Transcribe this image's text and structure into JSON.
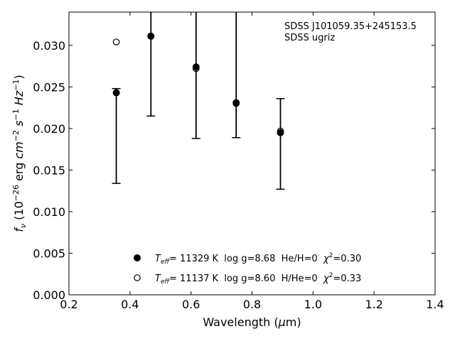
{
  "chart_data": {
    "type": "scatter",
    "annotations": [
      "SDSS J101059.35+245153.5",
      "SDSS ugriz"
    ],
    "xlabel": "Wavelength (μm)",
    "ylabel": "f_ν (10^-26 erg cm^-2 s^-1 Hz^-1)",
    "xlim": [
      0.2,
      1.4
    ],
    "ylim": [
      0.0,
      0.034
    ],
    "x_ticks": [
      "0.2",
      "0.4",
      "0.6",
      "0.8",
      "1.0",
      "1.2",
      "1.4"
    ],
    "y_ticks": [
      "0.000",
      "0.005",
      "0.010",
      "0.015",
      "0.020",
      "0.025",
      "0.030"
    ],
    "observed": {
      "bands": [
        "u",
        "g",
        "r",
        "i",
        "z"
      ],
      "x": [
        0.3551,
        0.4686,
        0.6166,
        0.748,
        0.8932
      ],
      "y": [
        0.0243,
        0.0311,
        0.0274,
        0.0231,
        0.0195
      ],
      "err_low": [
        0.0134,
        0.0215,
        0.0188,
        0.0189,
        0.0127
      ],
      "err_high": [
        0.0248,
        0.034,
        0.034,
        0.034,
        0.0236
      ]
    },
    "series": [
      {
        "name": "Teff= 11329 K  log g=8.68  He/H=0  χ2=0.30",
        "marker": "filled-circle",
        "x": [
          0.3551,
          0.4686,
          0.6166,
          0.748,
          0.8932
        ],
        "y": [
          0.0243,
          0.0311,
          0.0274,
          0.0231,
          0.0195
        ]
      },
      {
        "name": "Teff= 11137 K  log g=8.60  H/He=0  χ2=0.33",
        "marker": "open-circle",
        "x": [
          0.3551,
          0.4686,
          0.6166,
          0.748,
          0.8932
        ],
        "y": [
          0.0304,
          0.0311,
          0.0272,
          0.023,
          0.0197
        ]
      }
    ],
    "legend": {
      "placement": "lower-center",
      "items": [
        {
          "marker": "filled-circle",
          "teff_label": "T",
          "teff_sub": "eff",
          "text_a": "= 11329 K  log g=8.68  He/H=0  ",
          "chi": "χ",
          "chi_sup": "2",
          "text_b": "=0.30"
        },
        {
          "marker": "open-circle",
          "teff_label": "T",
          "teff_sub": "eff",
          "text_a": "= 11137 K  log g=8.60  H/He=0  ",
          "chi": "χ",
          "chi_sup": "2",
          "text_b": "=0.33"
        }
      ]
    },
    "grid": false,
    "colors": {
      "marker": "#000000",
      "axis": "#000000",
      "background": "#ffffff"
    }
  }
}
